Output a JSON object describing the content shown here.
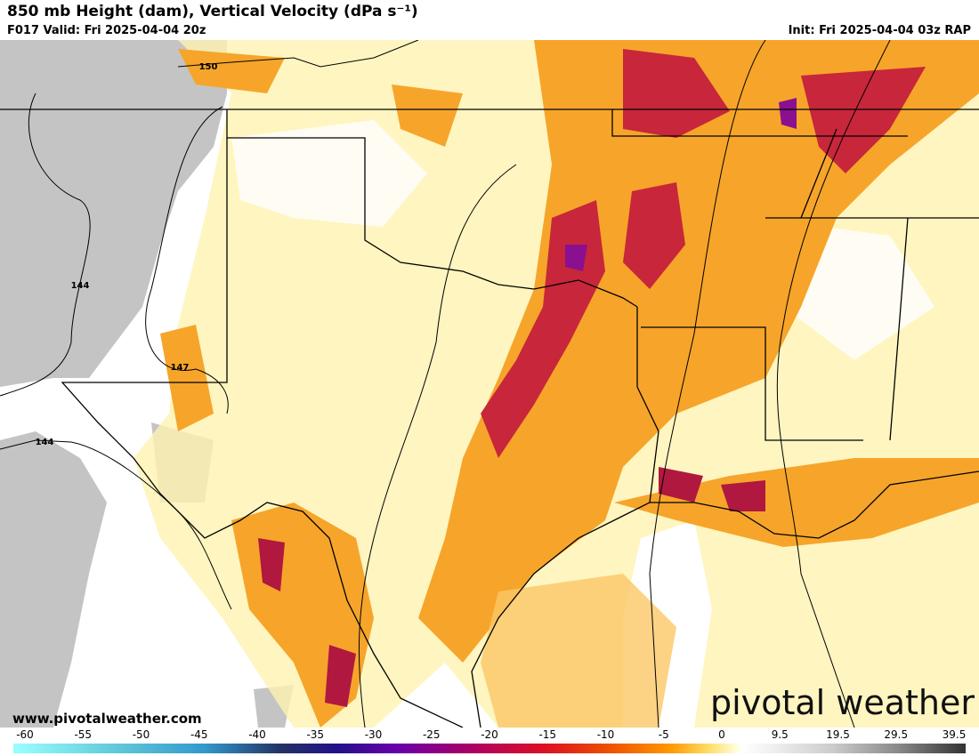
{
  "header": {
    "title": "850 mb Height (dam), Vertical Velocity (dPa s⁻¹)",
    "valid": "F017 Valid: Fri 2025-04-04 20z",
    "init": "Init: Fri 2025-04-04 03z RAP"
  },
  "contour_labels": [
    "150",
    "144",
    "147",
    "144"
  ],
  "watermark": {
    "url": "www.pivotalweather.com",
    "logo": "pivotal weather"
  },
  "colorbar": {
    "ticks": [
      -60,
      -55,
      -50,
      -45,
      -40,
      -35,
      -30,
      -25,
      -20,
      -15,
      -10,
      -5,
      0,
      9.5,
      19.5,
      29.5,
      39.5
    ]
  }
}
